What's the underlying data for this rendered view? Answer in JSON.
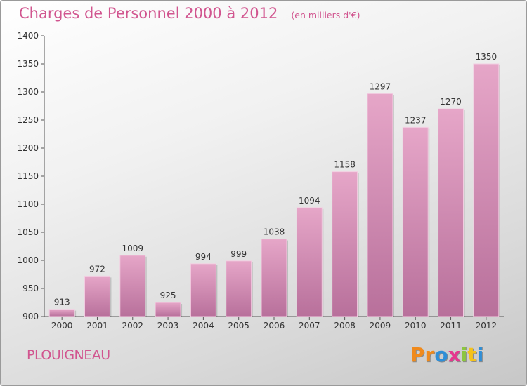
{
  "chart_data": {
    "type": "bar",
    "title": "Charges de Personnel 2000 à 2012",
    "subtitle": "(en milliers d'€)",
    "categories": [
      "2000",
      "2001",
      "2002",
      "2003",
      "2004",
      "2005",
      "2006",
      "2007",
      "2008",
      "2009",
      "2010",
      "2011",
      "2012"
    ],
    "values": [
      913,
      972,
      1009,
      925,
      994,
      999,
      1038,
      1094,
      1158,
      1297,
      1237,
      1270,
      1350
    ],
    "ylim": [
      900,
      1400
    ],
    "yticks": [
      900,
      950,
      1000,
      1050,
      1100,
      1150,
      1200,
      1250,
      1300,
      1350,
      1400
    ],
    "xlabel": "",
    "ylabel": "",
    "grid": false,
    "colors": {
      "bar": "#d68fb6",
      "bar_dark": "#b8709b",
      "axis": "#555555",
      "text": "#333333"
    }
  },
  "location": "PLOUIGNEAU",
  "brand": {
    "letters": [
      "P",
      "r",
      "o",
      "x",
      "i",
      "t",
      "i"
    ],
    "colors": [
      "#f08a1c",
      "#f08a1c",
      "#2f8fd8",
      "#e6378f",
      "#8cc63f",
      "#f4c21a",
      "#2f8fd8"
    ]
  }
}
